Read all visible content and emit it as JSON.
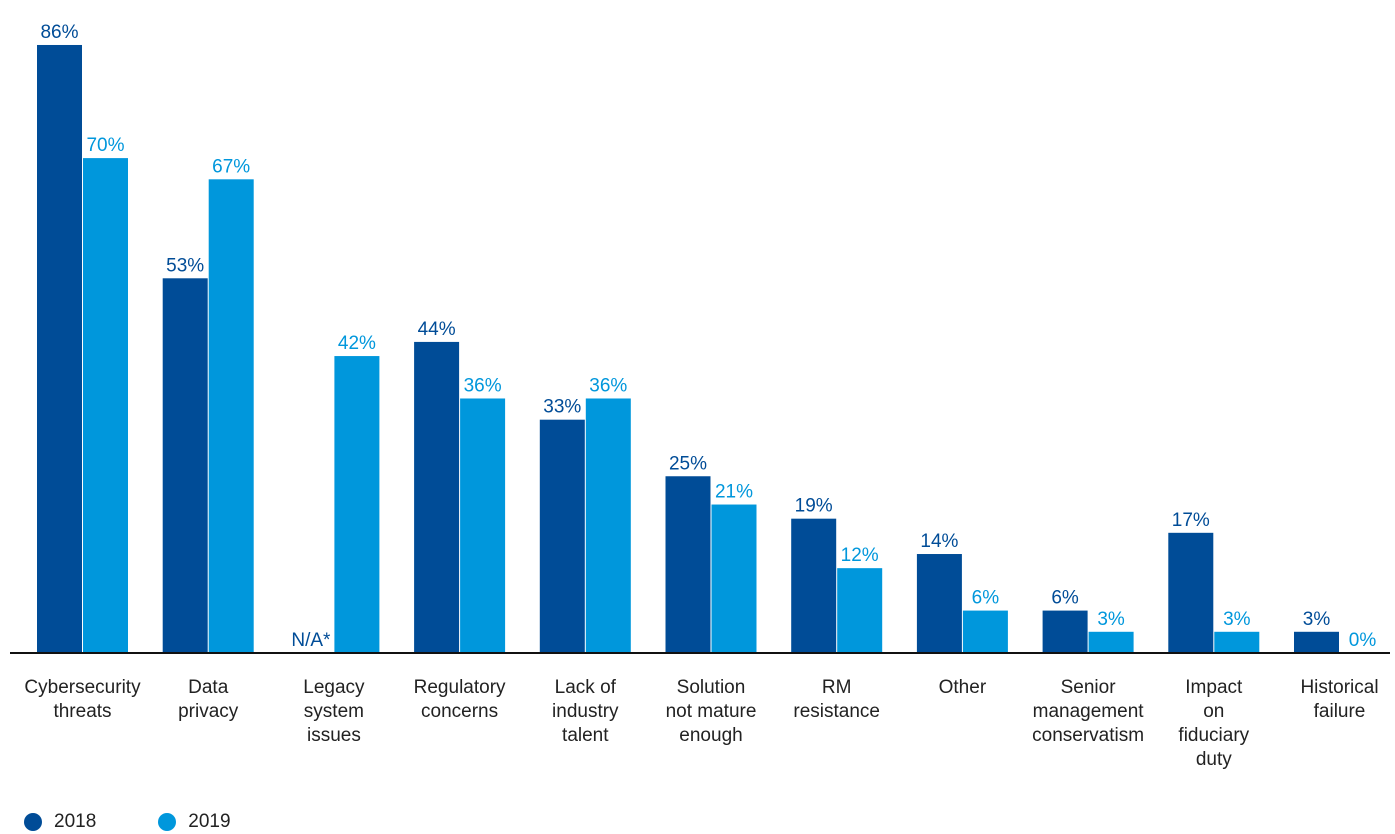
{
  "chart_data": {
    "type": "bar",
    "categories": [
      "Cybersecurity threats",
      "Data privacy",
      "Legacy system issues",
      "Regulatory concerns",
      "Lack of industry talent",
      "Solution not mature enough",
      "RM resistance",
      "Other",
      "Senior management conservatism",
      "Impact on fiduciary duty",
      "Historical failure"
    ],
    "category_label_lines": [
      [
        "Cybersecurity",
        "threats"
      ],
      [
        "Data",
        "privacy"
      ],
      [
        "Legacy",
        "system",
        "issues"
      ],
      [
        "Regulatory",
        "concerns"
      ],
      [
        "Lack of",
        "industry",
        "talent"
      ],
      [
        "Solution",
        "not mature",
        "enough"
      ],
      [
        "RM",
        "resistance"
      ],
      [
        "Other"
      ],
      [
        "Senior",
        "management",
        "conservatism"
      ],
      [
        "Impact",
        "on",
        "fiduciary",
        "duty"
      ],
      [
        "Historical",
        "failure"
      ]
    ],
    "series": [
      {
        "name": "2018",
        "color": "#004c97",
        "values": [
          86,
          53,
          null,
          44,
          33,
          25,
          19,
          14,
          6,
          17,
          3
        ],
        "labels": [
          "86%",
          "53%",
          "N/A*",
          "44%",
          "33%",
          "25%",
          "19%",
          "14%",
          "6%",
          "17%",
          "3%"
        ]
      },
      {
        "name": "2019",
        "color": "#0097dc",
        "values": [
          70,
          67,
          42,
          36,
          36,
          21,
          12,
          6,
          3,
          3,
          0
        ],
        "labels": [
          "70%",
          "67%",
          "42%",
          "36%",
          "36%",
          "21%",
          "12%",
          "6%",
          "3%",
          "3%",
          "0%"
        ]
      }
    ],
    "ylim": [
      0,
      100
    ],
    "grid": false,
    "legend_position": "bottom-left"
  }
}
